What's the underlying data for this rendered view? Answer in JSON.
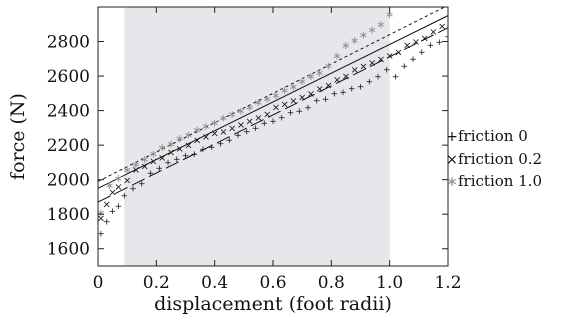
{
  "chart_data": {
    "type": "scatter",
    "title": "",
    "xlabel": "displacement (foot radii)",
    "ylabel": "force (N)",
    "xlim": [
      0,
      1.2
    ],
    "ylim": [
      1500,
      3000
    ],
    "x_ticks": [
      "0",
      "0.2",
      "0.4",
      "0.6",
      "0.8",
      "1.0",
      "1.2"
    ],
    "y_ticks": [
      "1600",
      "1800",
      "2000",
      "2200",
      "2400",
      "2600",
      "2800"
    ],
    "x_tick_values": [
      0,
      0.2,
      0.4,
      0.6,
      0.8,
      1.0,
      1.2
    ],
    "y_tick_values": [
      1600,
      1800,
      2000,
      2200,
      2400,
      2600,
      2800
    ],
    "shaded_region_x": [
      0.09,
      1.0
    ],
    "colors": {
      "shade": "#e6e7ea",
      "friction0": "#111111",
      "friction02": "#111111",
      "friction1": "#8f8f8f"
    },
    "legend_position": "right",
    "series": [
      {
        "name": "friction 0",
        "marker": "+",
        "fit_line": {
          "style": "long-dash",
          "x": [
            0,
            1.2
          ],
          "y": [
            1870,
            2880
          ]
        },
        "x": [
          0.01,
          0.03,
          0.05,
          0.07,
          0.09,
          0.12,
          0.15,
          0.18,
          0.21,
          0.24,
          0.27,
          0.3,
          0.33,
          0.36,
          0.39,
          0.42,
          0.45,
          0.48,
          0.51,
          0.54,
          0.57,
          0.6,
          0.63,
          0.66,
          0.69,
          0.72,
          0.75,
          0.78,
          0.81,
          0.84,
          0.87,
          0.9,
          0.93,
          0.96,
          0.99,
          1.02,
          1.05,
          1.08,
          1.11,
          1.14,
          1.17,
          1.2
        ],
        "y": [
          1690,
          1760,
          1820,
          1850,
          1910,
          1950,
          1980,
          2040,
          2070,
          2100,
          2120,
          2140,
          2150,
          2180,
          2190,
          2210,
          2230,
          2260,
          2280,
          2300,
          2330,
          2340,
          2360,
          2390,
          2400,
          2420,
          2460,
          2470,
          2500,
          2510,
          2530,
          2540,
          2570,
          2600,
          2640,
          2600,
          2660,
          2700,
          2740,
          2780,
          2800,
          2830
        ]
      },
      {
        "name": "friction 0.2",
        "marker": "×",
        "fit_line": {
          "style": "solid",
          "x": [
            0,
            1.2
          ],
          "y": [
            1950,
            2950
          ]
        },
        "x": [
          0.01,
          0.03,
          0.05,
          0.07,
          0.1,
          0.13,
          0.16,
          0.19,
          0.22,
          0.25,
          0.28,
          0.31,
          0.34,
          0.37,
          0.4,
          0.43,
          0.46,
          0.49,
          0.52,
          0.55,
          0.58,
          0.61,
          0.64,
          0.67,
          0.7,
          0.73,
          0.76,
          0.79,
          0.82,
          0.85,
          0.88,
          0.91,
          0.94,
          0.97,
          1.0,
          1.03,
          1.06,
          1.09,
          1.12,
          1.15,
          1.18
        ],
        "y": [
          1780,
          1860,
          1930,
          1960,
          2000,
          2060,
          2080,
          2110,
          2130,
          2160,
          2180,
          2200,
          2230,
          2250,
          2270,
          2280,
          2300,
          2320,
          2340,
          2360,
          2380,
          2420,
          2440,
          2460,
          2480,
          2500,
          2530,
          2550,
          2580,
          2600,
          2640,
          2660,
          2680,
          2700,
          2720,
          2740,
          2780,
          2800,
          2820,
          2860,
          2890
        ]
      },
      {
        "name": "friction 1.0",
        "marker": "∗",
        "fit_line": {
          "style": "short-dash",
          "x": [
            0,
            1.2
          ],
          "y": [
            1990,
            3010
          ]
        },
        "x": [
          0.01,
          0.04,
          0.07,
          0.1,
          0.13,
          0.16,
          0.19,
          0.22,
          0.25,
          0.28,
          0.31,
          0.34,
          0.37,
          0.4,
          0.43,
          0.46,
          0.49,
          0.52,
          0.55,
          0.58,
          0.61,
          0.64,
          0.67,
          0.7,
          0.73,
          0.76,
          0.79,
          0.82,
          0.85,
          0.88,
          0.91,
          0.94,
          0.97,
          1.0
        ],
        "y": [
          1810,
          1970,
          2010,
          2060,
          2090,
          2120,
          2150,
          2190,
          2210,
          2240,
          2260,
          2290,
          2310,
          2330,
          2360,
          2380,
          2400,
          2420,
          2450,
          2470,
          2490,
          2520,
          2540,
          2570,
          2600,
          2620,
          2660,
          2720,
          2780,
          2810,
          2840,
          2870,
          2900,
          2960
        ]
      }
    ]
  }
}
